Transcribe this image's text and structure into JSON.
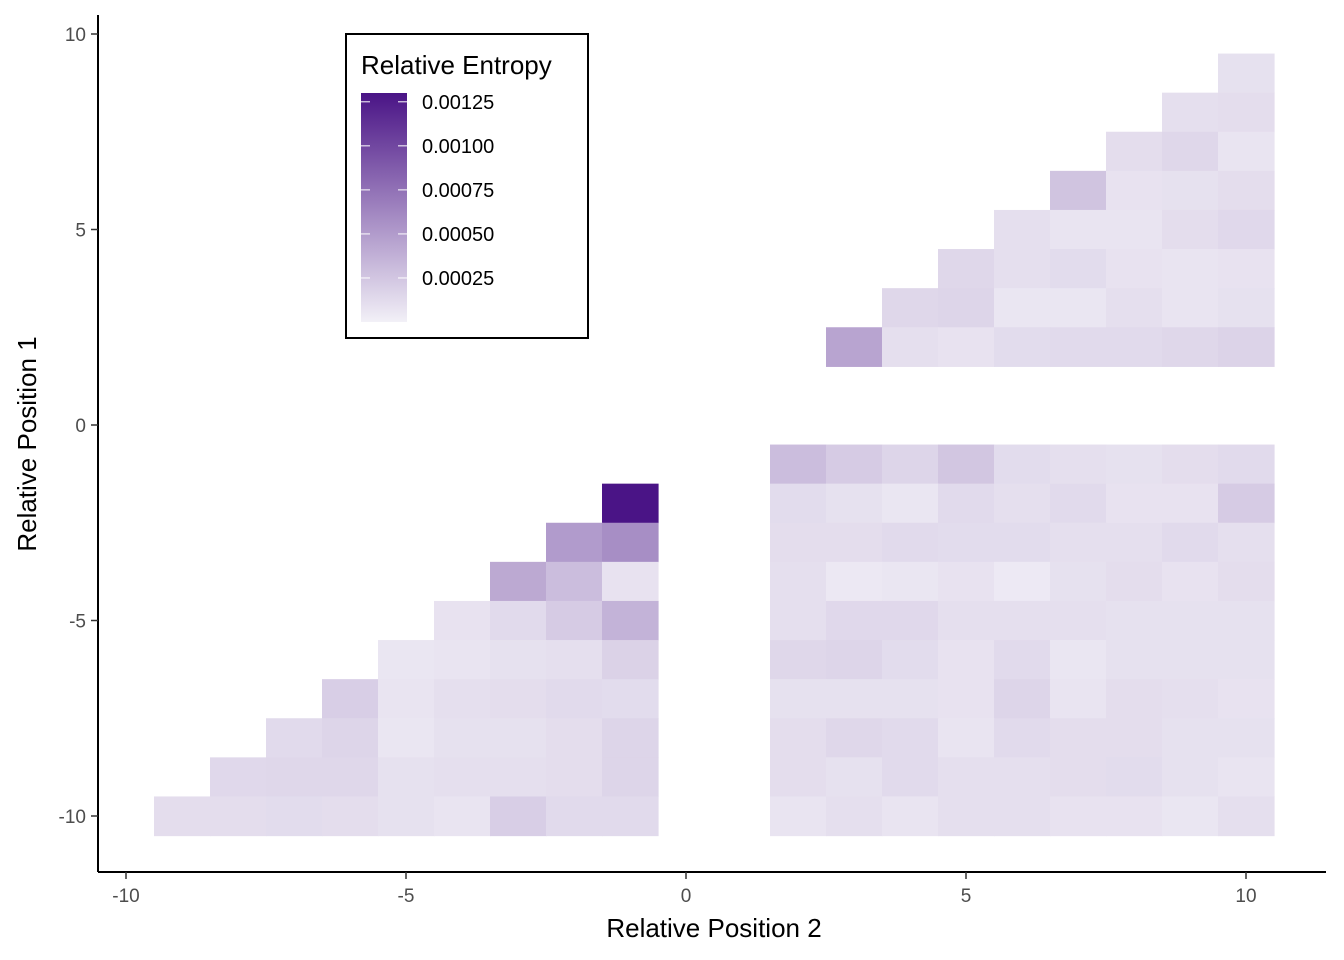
{
  "chart_data": {
    "type": "heatmap",
    "xlabel": "Relative Position 2",
    "ylabel": "Relative Position 1",
    "xlim": [
      -11,
      11
    ],
    "ylim": [
      -11.5,
      10
    ],
    "x_ticks": [
      -10,
      -5,
      0,
      5,
      10
    ],
    "y_ticks": [
      -10,
      -5,
      0,
      5,
      10
    ],
    "grid": false,
    "colors": {
      "low": "#f2f0f7",
      "high": "#4a1486"
    },
    "legend": {
      "title": "Relative Entropy",
      "placement": "top-left-inside",
      "min": 0,
      "max": 0.0013,
      "breaks": [
        0.00125,
        0.001,
        0.00075,
        0.0005,
        0.00025
      ],
      "break_labels": [
        "0.00125",
        "0.00100",
        "0.00075",
        "0.00050",
        "0.00025"
      ]
    },
    "cells_lower_left": {
      "rows": [
        {
          "y": -2,
          "start_x": -1,
          "values": [
            0.0013
          ]
        },
        {
          "y": -3,
          "start_x": -2,
          "values": [
            0.0005,
            0.00058
          ]
        },
        {
          "y": -4,
          "start_x": -3,
          "values": [
            0.00042,
            0.0003,
            8e-05
          ]
        },
        {
          "y": -5,
          "start_x": -4,
          "values": [
            8e-05,
            0.00013,
            0.00022,
            0.00036
          ]
        },
        {
          "y": -6,
          "start_x": -5,
          "values": [
            6e-05,
            7e-05,
            9e-05,
            0.0001,
            0.00018
          ]
        },
        {
          "y": -7,
          "start_x": -6,
          "values": [
            0.0002,
            7e-05,
            0.0001,
            0.00011,
            0.00013,
            0.00012
          ]
        },
        {
          "y": -8,
          "start_x": -7,
          "values": [
            0.00013,
            0.00016,
            6e-05,
            9e-05,
            9e-05,
            0.00011,
            0.00016
          ]
        },
        {
          "y": -9,
          "start_x": -8,
          "values": [
            0.00014,
            0.00015,
            0.00015,
            9e-05,
            0.0001,
            0.0001,
            0.00011,
            0.00016
          ]
        },
        {
          "y": -10,
          "start_x": -9,
          "values": [
            0.00011,
            0.00011,
            0.00012,
            0.00011,
            9e-05,
            7e-05,
            0.0002,
            0.00013,
            0.00013
          ]
        }
      ]
    },
    "cells_lower_right": {
      "x_start": 2,
      "rows": [
        {
          "y": -1,
          "values": [
            0.0003,
            0.00022,
            0.00016,
            0.00025,
            0.00012,
            0.0001,
            9e-05,
            0.00011,
            0.00013
          ]
        },
        {
          "y": -2,
          "values": [
            0.00012,
            9e-05,
            6e-05,
            0.00013,
            0.0001,
            0.00013,
            8e-05,
            8e-05,
            0.00022
          ]
        },
        {
          "y": -3,
          "values": [
            0.00011,
            0.00011,
            0.00013,
            0.00012,
            0.00012,
            0.0001,
            0.0001,
            0.00013,
            0.0001
          ]
        },
        {
          "y": -4,
          "values": [
            0.0001,
            5e-05,
            6e-05,
            8e-05,
            4e-05,
            9e-05,
            0.00011,
            8e-05,
            0.00011
          ]
        },
        {
          "y": -5,
          "values": [
            0.0001,
            0.00014,
            0.00014,
            0.0001,
            0.0001,
            0.0001,
            9e-05,
            9e-05,
            9e-05
          ]
        },
        {
          "y": -6,
          "values": [
            0.00015,
            0.00016,
            0.00012,
            8e-05,
            0.00013,
            6e-05,
            9e-05,
            9e-05,
            9e-05
          ]
        },
        {
          "y": -7,
          "values": [
            9e-05,
            9e-05,
            9e-05,
            8e-05,
            0.00016,
            7e-05,
            0.00011,
            0.0001,
            8e-05
          ]
        },
        {
          "y": -8,
          "values": [
            0.00011,
            0.00015,
            0.00013,
            7e-05,
            0.00013,
            0.00011,
            0.00011,
            9e-05,
            9e-05
          ]
        },
        {
          "y": -9,
          "values": [
            0.00011,
            9e-05,
            0.00013,
            0.0001,
            0.0001,
            0.00011,
            0.00012,
            9e-05,
            7e-05
          ]
        },
        {
          "y": -10,
          "values": [
            7e-05,
            0.0001,
            7e-05,
            0.0001,
            0.0001,
            8e-05,
            8e-05,
            6e-05,
            0.0001
          ]
        }
      ]
    },
    "cells_upper_right": {
      "rows": [
        {
          "y": 9,
          "start_x": 10,
          "values": [
            9e-05
          ]
        },
        {
          "y": 8,
          "start_x": 9,
          "values": [
            0.0001,
            0.00011
          ]
        },
        {
          "y": 7,
          "start_x": 8,
          "values": [
            0.00011,
            0.00015,
            7e-05
          ]
        },
        {
          "y": 6,
          "start_x": 7,
          "values": [
            0.00026,
            8e-05,
            9e-05,
            0.00011
          ]
        },
        {
          "y": 5,
          "start_x": 6,
          "values": [
            0.0001,
            7e-05,
            7e-05,
            0.00011,
            0.00014
          ]
        },
        {
          "y": 4,
          "start_x": 5,
          "values": [
            0.00015,
            0.0001,
            0.00012,
            8e-05,
            7e-05,
            8e-05
          ]
        },
        {
          "y": 3,
          "start_x": 4,
          "values": [
            0.00015,
            0.00016,
            6e-05,
            6e-05,
            0.0001,
            7e-05,
            9e-05
          ]
        },
        {
          "y": 2,
          "start_x": 3,
          "values": [
            0.00045,
            0.0001,
            8e-05,
            0.00012,
            0.00013,
            0.00013,
            0.00015,
            0.00017
          ]
        }
      ]
    }
  }
}
